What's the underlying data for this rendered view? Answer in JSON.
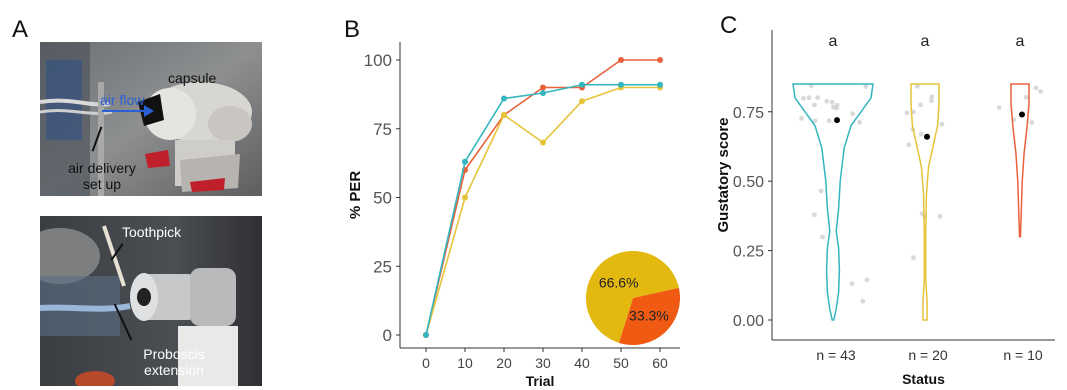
{
  "panels": {
    "a": "A",
    "b": "B",
    "c": "C"
  },
  "photo_top": {
    "labels": {
      "capsule": "capsule",
      "air_flow": "air flow",
      "air_delivery": "air delivery\nset up"
    }
  },
  "photo_bottom": {
    "labels": {
      "toothpick": "Toothpick",
      "proboscis": "Proboscis\nextension"
    }
  },
  "colors": {
    "orange": "#e8613a",
    "teal": "#33b5c0",
    "yellow": "#e6c43a",
    "pie_yellow": "#e3b90f",
    "pie_red": "#f05a12",
    "point_gray": "#cfcfcf"
  },
  "chart_data": [
    {
      "type": "line",
      "xlabel": "Trial",
      "ylabel": "% PER",
      "x": [
        0,
        10,
        20,
        30,
        40,
        50,
        60
      ],
      "xlim": [
        0,
        60
      ],
      "ylim": [
        0,
        100
      ],
      "xticks": [
        "0",
        "10",
        "20",
        "30",
        "40",
        "50",
        "60"
      ],
      "yticks": [
        "0",
        "25",
        "50",
        "75",
        "100"
      ],
      "grid": false,
      "series": [
        {
          "color": "#e8613a",
          "values": [
            0,
            60,
            80,
            90,
            90,
            100,
            100
          ]
        },
        {
          "color": "#e6c43a",
          "values": [
            0,
            50,
            80,
            70,
            85,
            90,
            90
          ]
        },
        {
          "color": "#33b5c0",
          "values": [
            0,
            63,
            86,
            88,
            91,
            91,
            91
          ]
        }
      ],
      "inset_pie": {
        "slices": [
          {
            "label": "66.6%",
            "value": 66.6,
            "color": "#e3b90f"
          },
          {
            "label": "33.3%",
            "value": 33.3,
            "color": "#f05a12"
          }
        ]
      }
    },
    {
      "type": "violin",
      "xlabel": "Status",
      "ylabel": "Gustatory score",
      "ylim": [
        0,
        0.85
      ],
      "yticks": [
        "0.00",
        "0.25",
        "0.50",
        "0.75"
      ],
      "grid": false,
      "groups": [
        {
          "color": "#33b5c0",
          "n_label": "n = 43",
          "letter": "a",
          "mean": 0.72
        },
        {
          "color": "#e6c43a",
          "n_label": "n = 20",
          "letter": "a",
          "mean": 0.66
        },
        {
          "color": "#e8613a",
          "n_label": "n = 10",
          "letter": "a",
          "mean": 0.74
        }
      ]
    }
  ]
}
